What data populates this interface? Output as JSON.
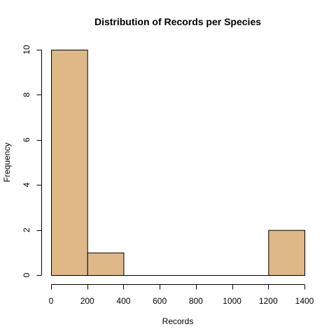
{
  "chart_data": {
    "type": "bar",
    "title": "Distribution of Records per Species",
    "xlabel": "Records",
    "ylabel": "Frequency",
    "bins": [
      {
        "from": 0,
        "to": 200,
        "count": 10
      },
      {
        "from": 200,
        "to": 400,
        "count": 1
      },
      {
        "from": 400,
        "to": 600,
        "count": 0
      },
      {
        "from": 600,
        "to": 800,
        "count": 0
      },
      {
        "from": 800,
        "to": 1000,
        "count": 0
      },
      {
        "from": 1000,
        "to": 1200,
        "count": 0
      },
      {
        "from": 1200,
        "to": 1400,
        "count": 2
      }
    ],
    "xlim": [
      0,
      1400
    ],
    "ylim": [
      0,
      10
    ],
    "xticks": [
      "0",
      "200",
      "400",
      "600",
      "800",
      "1000",
      "1200",
      "1400"
    ],
    "yticks": [
      "0",
      "2",
      "4",
      "6",
      "8",
      "10"
    ],
    "bar_color": "#deb887",
    "bar_outline": "#000000",
    "grid": false,
    "legend": "none"
  }
}
